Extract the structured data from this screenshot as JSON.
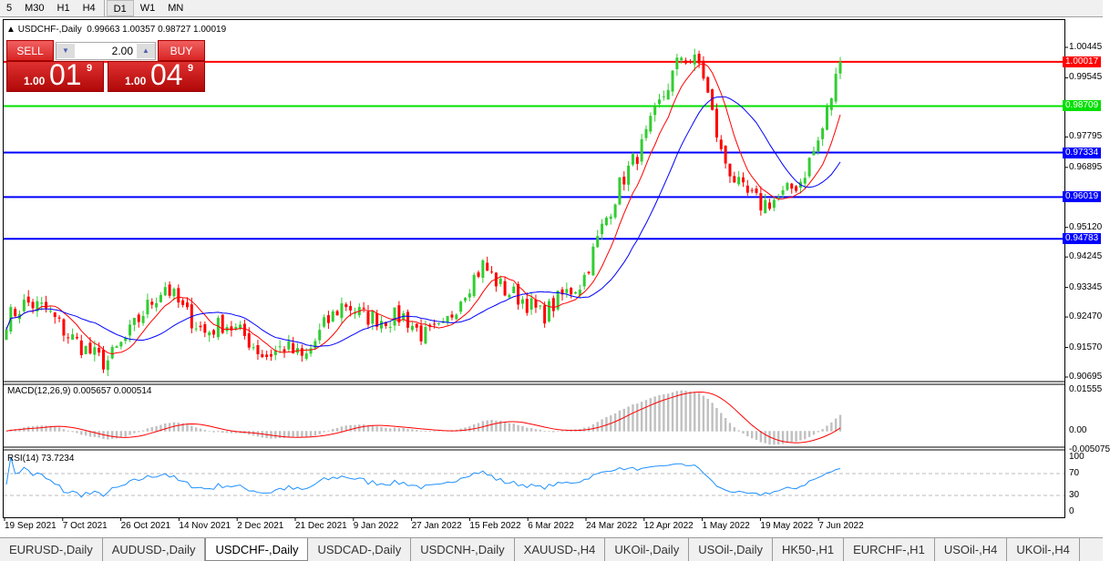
{
  "toolbar": {
    "timeframes": [
      "5",
      "M30",
      "H1",
      "H4",
      "D1",
      "W1",
      "MN"
    ],
    "active": "D1"
  },
  "chart": {
    "title": "USDCHF-,Daily",
    "ohlc": "0.99663 1.00357 0.98727 1.00019"
  },
  "trade": {
    "sell_label": "SELL",
    "buy_label": "BUY",
    "lot": "2.00",
    "sell_small": "1.00",
    "sell_big": "01",
    "sell_pip": "9",
    "buy_small": "1.00",
    "buy_big": "04",
    "buy_pip": "9"
  },
  "price_axis": [
    "1.00445",
    "0.99545",
    "0.97795",
    "0.96895",
    "0.95120",
    "0.94245",
    "0.93345",
    "0.92470",
    "0.91570",
    "0.90695"
  ],
  "levels": [
    {
      "value": "1.00017",
      "color": "#ff0000"
    },
    {
      "value": "0.98709",
      "color": "#00e000"
    },
    {
      "value": "0.97334",
      "color": "#0000ff"
    },
    {
      "value": "0.96019",
      "color": "#0000ff"
    },
    {
      "value": "0.94783",
      "color": "#0000ff"
    }
  ],
  "macd": {
    "label": "MACD(12,26,9) 0.005657 0.000514",
    "axis": [
      "0.01555",
      "0.00",
      "-0.005075"
    ]
  },
  "rsi": {
    "label": "RSI(14) 73.7234",
    "axis": [
      "100",
      "70",
      "30",
      "0"
    ]
  },
  "dates": [
    "19 Sep 2021",
    "7 Oct 2021",
    "26 Oct 2021",
    "14 Nov 2021",
    "2 Dec 2021",
    "21 Dec 2021",
    "9 Jan 2022",
    "27 Jan 2022",
    "15 Feb 2022",
    "6 Mar 2022",
    "24 Mar 2022",
    "12 Apr 2022",
    "1 May 2022",
    "19 May 2022",
    "7 Jun 2022"
  ],
  "tabs": [
    "EURUSD-,Daily",
    "AUDUSD-,Daily",
    "USDCHF-,Daily",
    "USDCAD-,Daily",
    "USDCNH-,Daily",
    "XAUUSD-,H4",
    "UKOil-,Daily",
    "USOil-,Daily",
    "HK50-,H1",
    "EURCHF-,H1",
    "USOil-,H4",
    "UKOil-,H4"
  ],
  "active_tab": "USDCHF-,Daily",
  "colors": {
    "bull": "#32cd32",
    "bear": "#ff0000",
    "ma_fast": "#ff0000",
    "ma_slow": "#0000ff",
    "rsi": "#1e90ff",
    "macd_hist": "#c0c0c0"
  },
  "chart_data": {
    "type": "candlestick",
    "closes_approx": [
      0.924,
      0.929,
      0.927,
      0.92,
      0.915,
      0.911,
      0.918,
      0.927,
      0.934,
      0.926,
      0.92,
      0.923,
      0.919,
      0.913,
      0.916,
      0.912,
      0.922,
      0.929,
      0.925,
      0.924,
      0.925,
      0.919,
      0.921,
      0.932,
      0.94,
      0.933,
      0.93,
      0.925,
      0.931,
      0.935,
      0.951,
      0.965,
      0.975,
      0.989,
      1.002,
      0.999,
      0.973,
      0.962,
      0.958,
      0.96,
      0.965,
      0.978,
      1.0
    ]
  }
}
